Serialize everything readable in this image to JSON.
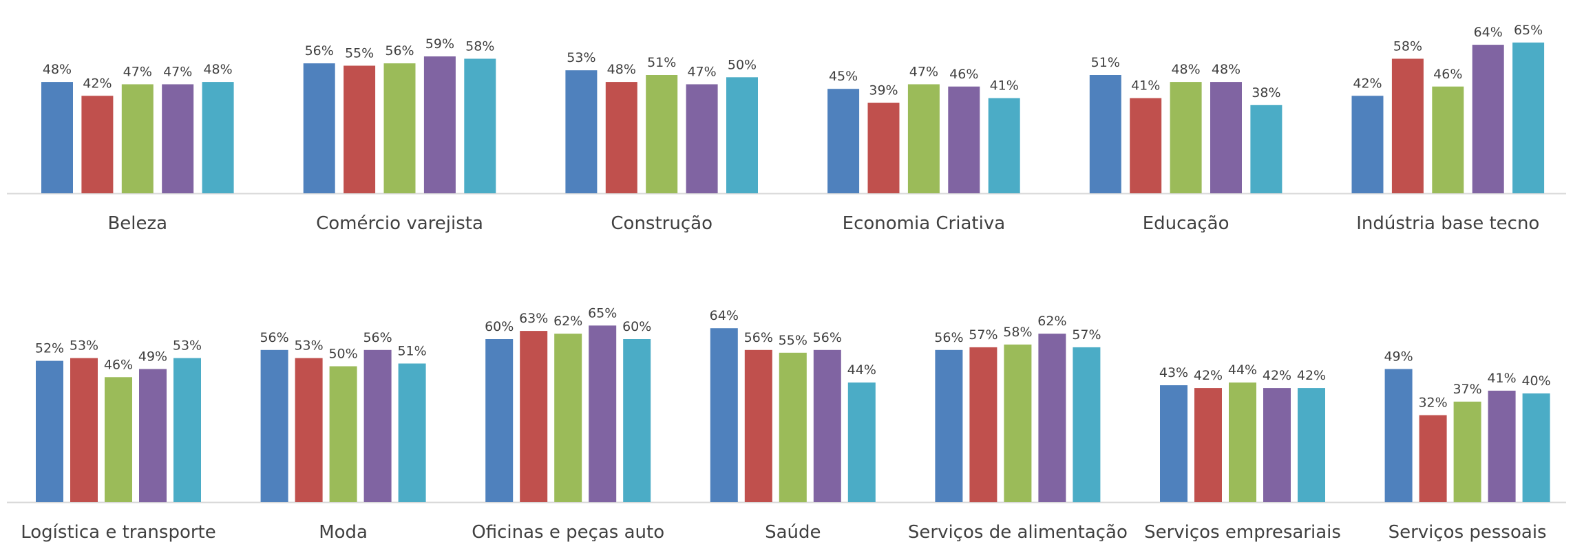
{
  "chart_data": [
    {
      "type": "bar",
      "categories": [
        "Beleza",
        "Comércio varejista",
        "Construção",
        "Economia Criativa",
        "Educação",
        "Indústria base tecno"
      ],
      "series": [
        {
          "color": "#4F81BD",
          "values": [
            48,
            56,
            53,
            45,
            51,
            42
          ]
        },
        {
          "color": "#C0504D",
          "values": [
            42,
            55,
            48,
            39,
            41,
            58
          ]
        },
        {
          "color": "#9BBB59",
          "values": [
            47,
            56,
            51,
            47,
            48,
            46
          ]
        },
        {
          "color": "#8064A2",
          "values": [
            47,
            59,
            47,
            46,
            48,
            64
          ]
        },
        {
          "color": "#4BACC6",
          "values": [
            48,
            58,
            50,
            41,
            38,
            65
          ]
        }
      ],
      "value_format": "percent",
      "grid": false,
      "legend": "none"
    },
    {
      "type": "bar",
      "categories": [
        "Logística e transporte",
        "Moda",
        "Oficinas e peças auto",
        "Saúde",
        "Serviços de alimentação",
        "Serviços empresariais",
        "Serviços pessoais"
      ],
      "series": [
        {
          "color": "#4F81BD",
          "values": [
            52,
            56,
            60,
            64,
            56,
            43,
            49
          ]
        },
        {
          "color": "#C0504D",
          "values": [
            53,
            53,
            63,
            56,
            57,
            42,
            32
          ]
        },
        {
          "color": "#9BBB59",
          "values": [
            46,
            50,
            62,
            55,
            58,
            44,
            37
          ]
        },
        {
          "color": "#8064A2",
          "values": [
            49,
            56,
            65,
            56,
            62,
            42,
            41
          ]
        },
        {
          "color": "#4BACC6",
          "values": [
            53,
            51,
            60,
            44,
            57,
            42,
            40
          ]
        }
      ],
      "value_format": "percent",
      "grid": false,
      "legend": "none"
    }
  ]
}
